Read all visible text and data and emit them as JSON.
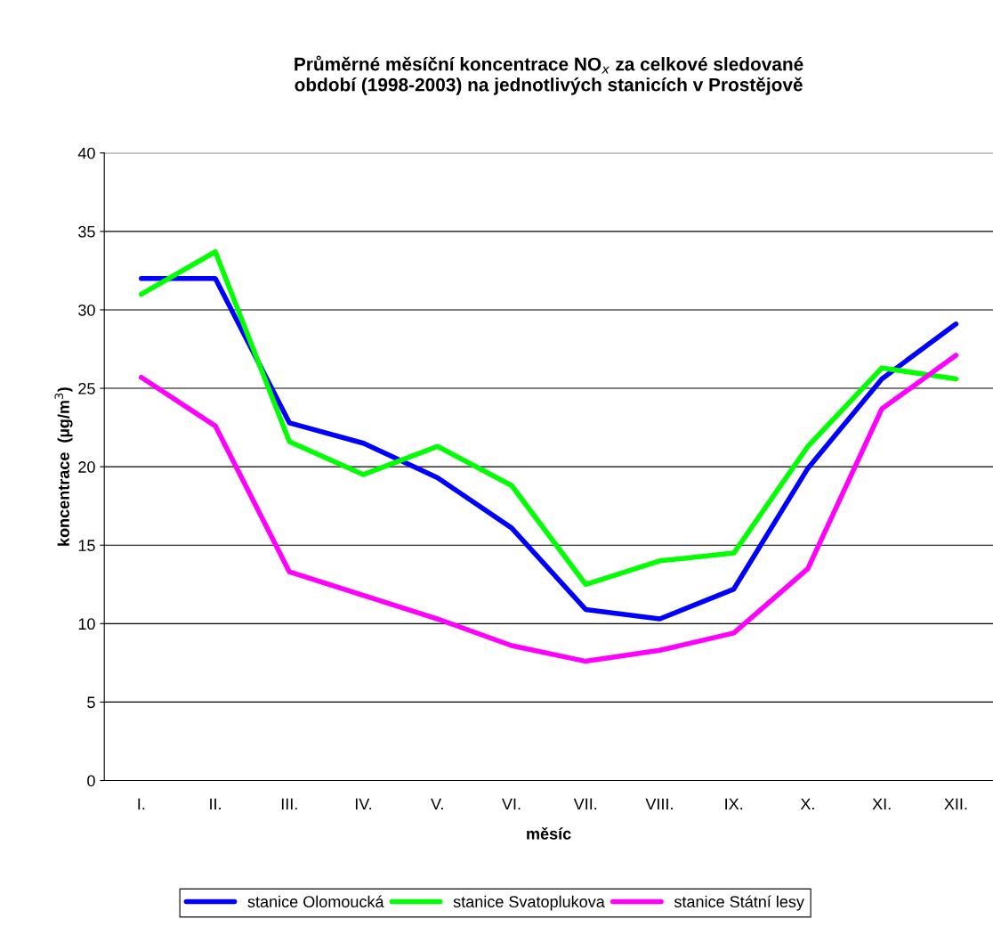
{
  "chart_data": {
    "type": "line",
    "title": "Průměrné měsíční koncentrace NO$_{x}$ za celkové sledované\nobdobí (1998-2003) na jednotlivých stanicích v Prostějově",
    "xlabel": "měsíc",
    "ylabel": "koncentrace  (µg/m$^{3}$)",
    "categories": [
      "I.",
      "II.",
      "III.",
      "IV.",
      "V.",
      "VI.",
      "VII.",
      "VIII.",
      "IX.",
      "X.",
      "XI.",
      "XII."
    ],
    "series": [
      {
        "name": "stanice Olomoucká",
        "color": "#0000ff",
        "values": [
          32.0,
          32.0,
          22.8,
          21.5,
          19.3,
          16.1,
          10.9,
          10.3,
          12.2,
          19.9,
          25.6,
          29.1
        ]
      },
      {
        "name": "stanice Svatoplukova",
        "color": "#00ff00",
        "values": [
          31.0,
          33.7,
          21.6,
          19.5,
          21.3,
          18.8,
          12.5,
          14.0,
          14.5,
          21.3,
          26.3,
          25.6
        ]
      },
      {
        "name": "stanice Státní lesy",
        "color": "#ff00ff",
        "values": [
          25.7,
          22.6,
          13.3,
          11.8,
          10.3,
          8.6,
          7.6,
          8.3,
          9.4,
          13.5,
          23.7,
          27.1
        ]
      }
    ],
    "ylim": [
      0,
      40
    ],
    "yticks": [
      0,
      5,
      10,
      15,
      20,
      25,
      30,
      35,
      40
    ],
    "grid": "y",
    "legend": "bottom",
    "marker": "none",
    "line_style": "solid"
  }
}
